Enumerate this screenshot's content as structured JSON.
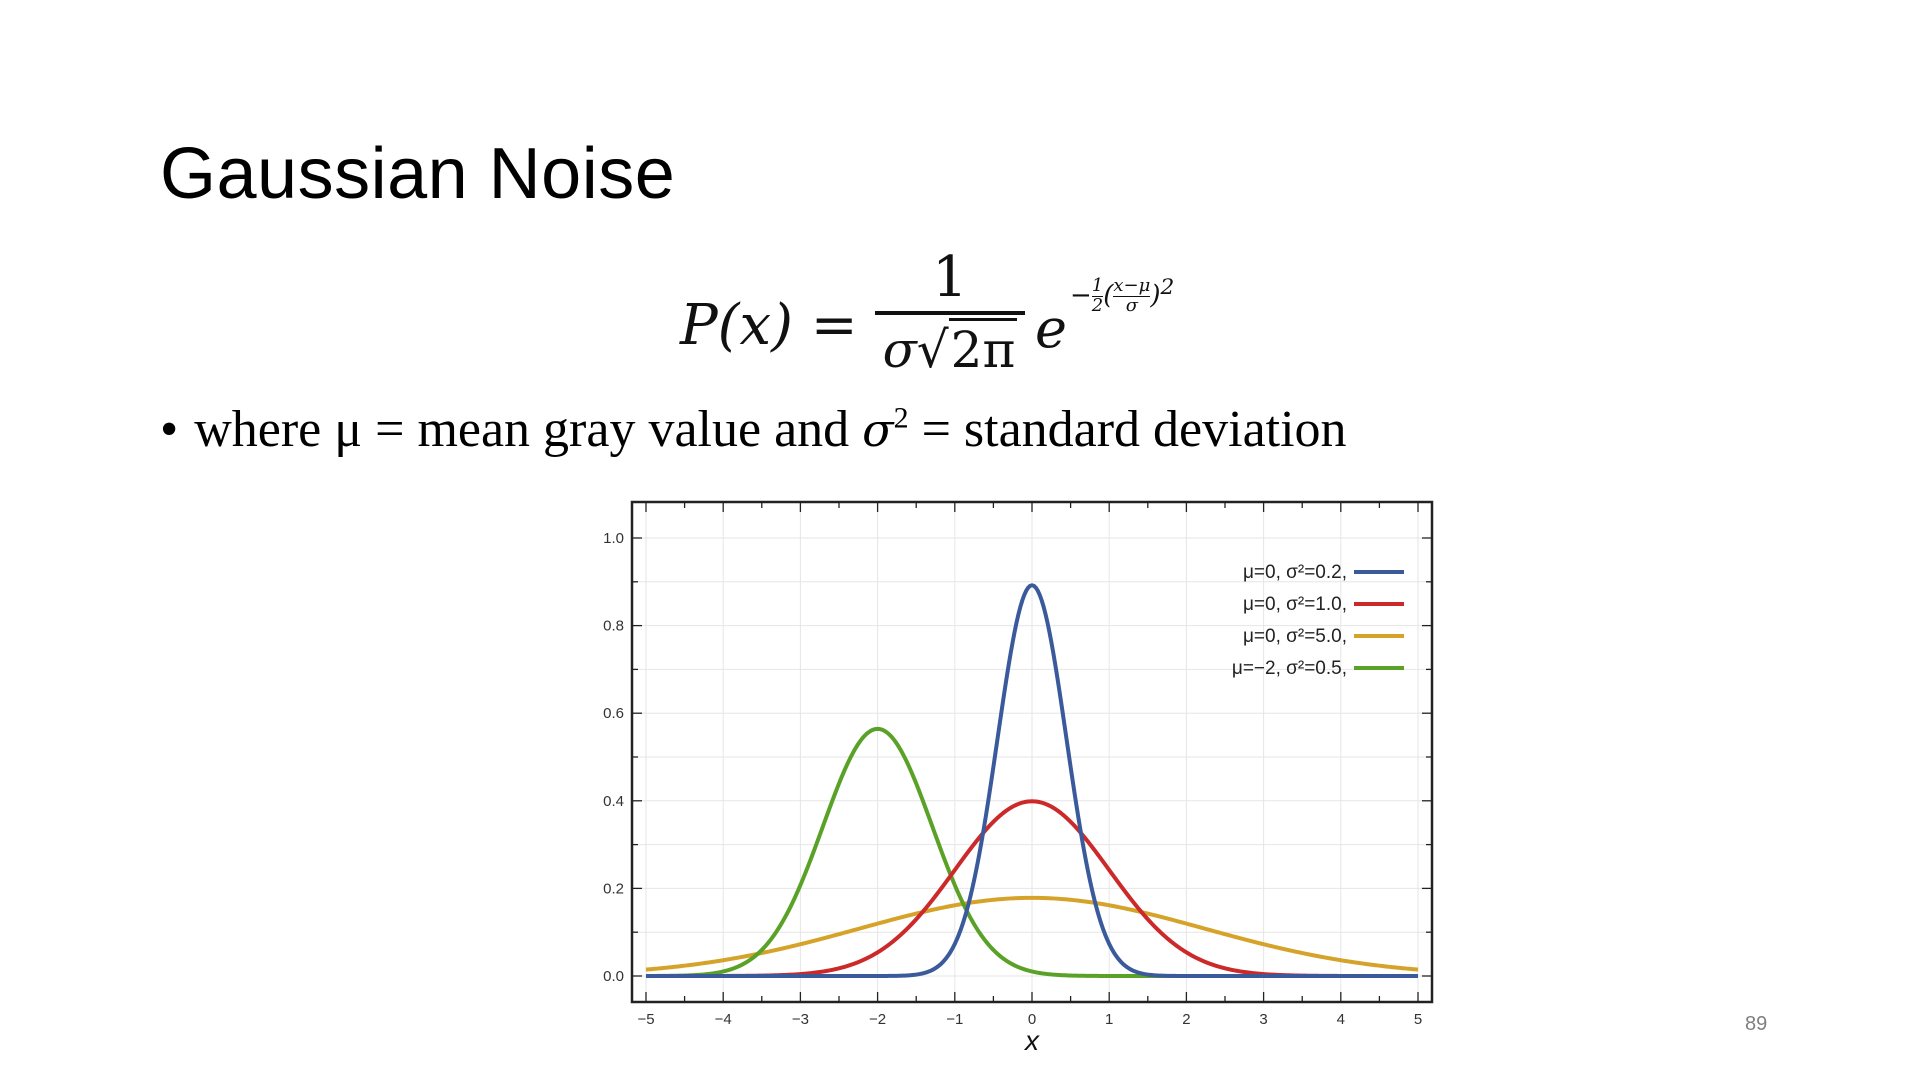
{
  "slide": {
    "title": "Gaussian Noise",
    "page_number": "89"
  },
  "formula": {
    "lhs": "P(x) =",
    "numerator": "1",
    "den_sigma": "σ",
    "den_root": "2π",
    "base": "e",
    "exp_sign": "−",
    "exp_half_num": "1",
    "exp_half_den": "2",
    "exp_open": "(",
    "exp_inner_num": "x−μ",
    "exp_inner_den": "σ",
    "exp_close": ")",
    "exp_power": "2"
  },
  "bullet": {
    "marker": "•",
    "text_1": "where μ = mean gray value and ",
    "sigma": "σ",
    "sup": "2",
    "text_2": " = standard deviation"
  },
  "colors": {
    "blue": "#3a5a9c",
    "red": "#cc2a2a",
    "gold": "#d6a32a",
    "green": "#5aa227",
    "grid": "#e6e6e6",
    "frame": "#222222"
  },
  "chart_data": {
    "type": "line",
    "title": "",
    "xlabel": "x",
    "ylabel": "",
    "xlim": [
      -5,
      5
    ],
    "ylim": [
      0,
      1.0
    ],
    "x_ticks": [
      -5,
      -4,
      -3,
      -2,
      -1,
      0,
      1,
      2,
      3,
      4,
      5
    ],
    "x_tick_labels": [
      "−5",
      "−4",
      "−3",
      "−2",
      "−1",
      "0",
      "1",
      "2",
      "3",
      "4",
      "5"
    ],
    "y_ticks": [
      0,
      0.2,
      0.4,
      0.6,
      0.8,
      1.0
    ],
    "y_tick_labels": [
      "0.0",
      "0.2",
      "0.4",
      "0.6",
      "0.8",
      "1.0"
    ],
    "grid": true,
    "legend_position": "top-right",
    "series": [
      {
        "name": "μ=0,   σ²=0.2,",
        "mu": 0,
        "variance": 0.2,
        "color": "#3a5a9c"
      },
      {
        "name": "μ=0,   σ²=1.0,",
        "mu": 0,
        "variance": 1.0,
        "color": "#cc2a2a"
      },
      {
        "name": "μ=0,   σ²=5.0,",
        "mu": 0,
        "variance": 5.0,
        "color": "#d6a32a"
      },
      {
        "name": "μ=−2, σ²=0.5,",
        "mu": -2,
        "variance": 0.5,
        "color": "#5aa227"
      }
    ]
  }
}
